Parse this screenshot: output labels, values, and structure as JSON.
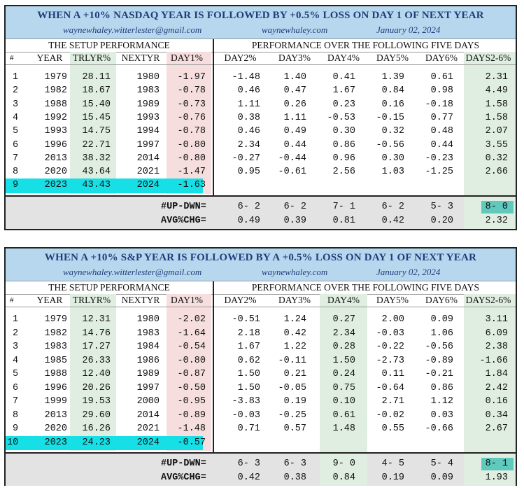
{
  "panels": [
    {
      "title": "WHEN A +10% NASDAQ YEAR IS FOLLOWED BY +0.5% LOSS ON DAY 1 OF NEXT YEAR",
      "email": "waynewhaley.witterlester@gmail.com",
      "site": "waynewhaley.com",
      "date": "January 02, 2024",
      "setup_header": "THE SETUP PERFORMANCE",
      "perf_header": "PERFORMANCE OVER THE FOLLOWING FIVE DAYS",
      "columns": [
        "#",
        "YEAR",
        "TRLYR%",
        "NEXTYR",
        "DAY1%",
        "DAY2%",
        "DAY3%",
        "DAY4%",
        "DAY5%",
        "DAY6%",
        "DAYS2-6%"
      ],
      "rows": [
        [
          "1",
          "1979",
          "28.11",
          "1980",
          "-1.97",
          "-1.48",
          "1.40",
          "0.41",
          "1.39",
          "0.61",
          "2.31"
        ],
        [
          "2",
          "1982",
          "18.67",
          "1983",
          "-0.78",
          "0.46",
          "0.47",
          "1.67",
          "0.84",
          "0.98",
          "4.49"
        ],
        [
          "3",
          "1988",
          "15.40",
          "1989",
          "-0.73",
          "1.11",
          "0.26",
          "0.23",
          "0.16",
          "-0.18",
          "1.58"
        ],
        [
          "4",
          "1992",
          "15.45",
          "1993",
          "-0.76",
          "0.38",
          "1.11",
          "-0.53",
          "-0.15",
          "0.77",
          "1.58"
        ],
        [
          "5",
          "1993",
          "14.75",
          "1994",
          "-0.78",
          "0.46",
          "0.49",
          "0.30",
          "0.32",
          "0.48",
          "2.07"
        ],
        [
          "6",
          "1996",
          "22.71",
          "1997",
          "-0.80",
          "2.34",
          "0.44",
          "0.86",
          "-0.56",
          "0.44",
          "3.55"
        ],
        [
          "7",
          "2013",
          "38.32",
          "2014",
          "-0.80",
          "-0.27",
          "-0.44",
          "0.96",
          "0.30",
          "-0.23",
          "0.32"
        ],
        [
          "8",
          "2020",
          "43.64",
          "2021",
          "-1.47",
          "0.95",
          "-0.61",
          "2.56",
          "1.03",
          "-1.25",
          "2.66"
        ],
        [
          "9",
          "2023",
          "43.43",
          "2024",
          "-1.63",
          "",
          "",
          "",
          "",
          "",
          ""
        ]
      ],
      "summary": {
        "updwn_label": "#UP-DWN=",
        "updwn": [
          "6- 2",
          "6- 2",
          "7- 1",
          "6- 2",
          "5- 3",
          "8- 0"
        ],
        "avg_label": "AVG%CHG=",
        "avg": [
          "0.49",
          "0.39",
          "0.81",
          "0.42",
          "0.20",
          "2.32"
        ]
      }
    },
    {
      "title": "WHEN A +10% S&P YEAR IS FOLLOWED BY A +0.5% LOSS ON DAY 1 OF NEXT YEAR",
      "email": "waynewhaley.witterlester@gmail.com",
      "site": "waynewhaley.com",
      "date": "January 02, 2024",
      "setup_header": "THE SETUP PERFORMANCE",
      "perf_header": "PERFORMANCE OVER THE FOLLOWING FIVE DAYS",
      "columns": [
        "#",
        "YEAR",
        "TRLYR%",
        "NEXTYR",
        "DAY1%",
        "DAY2%",
        "DAY3%",
        "DAY4%",
        "DAY5%",
        "DAY6%",
        "DAYS2-6%"
      ],
      "rows": [
        [
          "1",
          "1979",
          "12.31",
          "1980",
          "-2.02",
          "-0.51",
          "1.24",
          "0.27",
          "2.00",
          "0.09",
          "3.11"
        ],
        [
          "2",
          "1982",
          "14.76",
          "1983",
          "-1.64",
          "2.18",
          "0.42",
          "2.34",
          "-0.03",
          "1.06",
          "6.09"
        ],
        [
          "3",
          "1983",
          "17.27",
          "1984",
          "-0.54",
          "1.67",
          "1.22",
          "0.28",
          "-0.22",
          "-0.56",
          "2.38"
        ],
        [
          "4",
          "1985",
          "26.33",
          "1986",
          "-0.80",
          "0.62",
          "-0.11",
          "1.50",
          "-2.73",
          "-0.89",
          "-1.66"
        ],
        [
          "5",
          "1988",
          "12.40",
          "1989",
          "-0.87",
          "1.50",
          "0.21",
          "0.24",
          "0.11",
          "-0.21",
          "1.84"
        ],
        [
          "6",
          "1996",
          "20.26",
          "1997",
          "-0.50",
          "1.50",
          "-0.05",
          "0.75",
          "-0.64",
          "0.86",
          "2.42"
        ],
        [
          "7",
          "1999",
          "19.53",
          "2000",
          "-0.95",
          "-3.83",
          "0.19",
          "0.10",
          "2.71",
          "1.12",
          "0.16"
        ],
        [
          "8",
          "2013",
          "29.60",
          "2014",
          "-0.89",
          "-0.03",
          "-0.25",
          "0.61",
          "-0.02",
          "0.03",
          "0.34"
        ],
        [
          "9",
          "2020",
          "16.26",
          "2021",
          "-1.48",
          "0.71",
          "0.57",
          "1.48",
          "0.55",
          "-0.66",
          "2.67"
        ],
        [
          "10",
          "2023",
          "24.23",
          "2024",
          "-0.57",
          "",
          "",
          "",
          "",
          "",
          ""
        ]
      ],
      "summary": {
        "updwn_label": "#UP-DWN=",
        "updwn": [
          "6- 3",
          "6- 3",
          "9- 0",
          "4- 5",
          "5- 4",
          "8- 1"
        ],
        "avg_label": "AVG%CHG=",
        "avg": [
          "0.42",
          "0.38",
          "0.84",
          "0.19",
          "0.09",
          "1.93"
        ]
      }
    }
  ],
  "colors": {
    "title_bg": "#b7d7ee",
    "title_text": "#1f3d7a",
    "trlyr_shade": "#dfeee0",
    "day1_shade": "#f6dede",
    "current_row_highlight": "#16dfe6",
    "days_total_highlight": "#5fc9bd",
    "summary_bg": "#e3e3e3"
  }
}
